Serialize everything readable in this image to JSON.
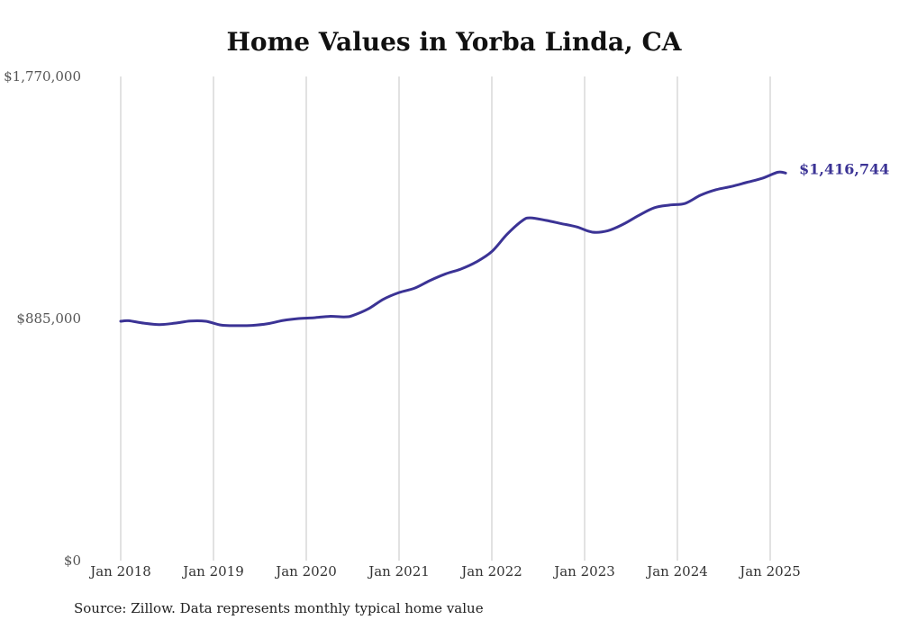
{
  "chart_data": {
    "type": "line",
    "title": "Home Values in Yorba Linda, CA",
    "source_note": "Source: Zillow. Data represents monthly typical home value",
    "ylim": [
      0,
      1770000
    ],
    "y_ticks": [
      "$0",
      "$885,000",
      "$1,770,000"
    ],
    "y_tick_values": [
      0,
      885000,
      1770000
    ],
    "x_ticks": [
      "Jan 2018",
      "Jan 2019",
      "Jan 2020",
      "Jan 2021",
      "Jan 2022",
      "Jan 2023",
      "Jan 2024",
      "Jan 2025"
    ],
    "x_tick_dates": [
      "2018-01",
      "2019-01",
      "2020-01",
      "2021-01",
      "2022-01",
      "2023-01",
      "2024-01",
      "2025-01"
    ],
    "grid": "vertical",
    "line_color": "#3b3395",
    "end_label": "$1,416,744",
    "series": [
      {
        "points": [
          [
            "2018-01",
            875000
          ],
          [
            "2018-02",
            877000
          ],
          [
            "2018-04",
            868000
          ],
          [
            "2018-06",
            863000
          ],
          [
            "2018-08",
            868000
          ],
          [
            "2018-10",
            876000
          ],
          [
            "2018-12",
            875000
          ],
          [
            "2019-02",
            861000
          ],
          [
            "2019-04",
            859000
          ],
          [
            "2019-06",
            860000
          ],
          [
            "2019-08",
            866000
          ],
          [
            "2019-10",
            878000
          ],
          [
            "2019-12",
            885000
          ],
          [
            "2020-02",
            888000
          ],
          [
            "2020-04",
            893000
          ],
          [
            "2020-06",
            891000
          ],
          [
            "2020-07",
            896000
          ],
          [
            "2020-09",
            920000
          ],
          [
            "2020-11",
            956000
          ],
          [
            "2021-01",
            980000
          ],
          [
            "2021-03",
            996000
          ],
          [
            "2021-05",
            1024000
          ],
          [
            "2021-07",
            1048000
          ],
          [
            "2021-09",
            1066000
          ],
          [
            "2021-11",
            1092000
          ],
          [
            "2022-01",
            1130000
          ],
          [
            "2022-03",
            1194000
          ],
          [
            "2022-05",
            1244000
          ],
          [
            "2022-06",
            1253000
          ],
          [
            "2022-08",
            1244000
          ],
          [
            "2022-10",
            1232000
          ],
          [
            "2022-12",
            1220000
          ],
          [
            "2023-02",
            1201000
          ],
          [
            "2023-04",
            1206000
          ],
          [
            "2023-06",
            1230000
          ],
          [
            "2023-08",
            1262000
          ],
          [
            "2023-10",
            1290000
          ],
          [
            "2023-12",
            1300000
          ],
          [
            "2024-02",
            1306000
          ],
          [
            "2024-04",
            1336000
          ],
          [
            "2024-06",
            1356000
          ],
          [
            "2024-08",
            1368000
          ],
          [
            "2024-10",
            1383000
          ],
          [
            "2024-12",
            1398000
          ],
          [
            "2025-02",
            1420000
          ],
          [
            "2025-03",
            1416744
          ]
        ]
      }
    ]
  }
}
